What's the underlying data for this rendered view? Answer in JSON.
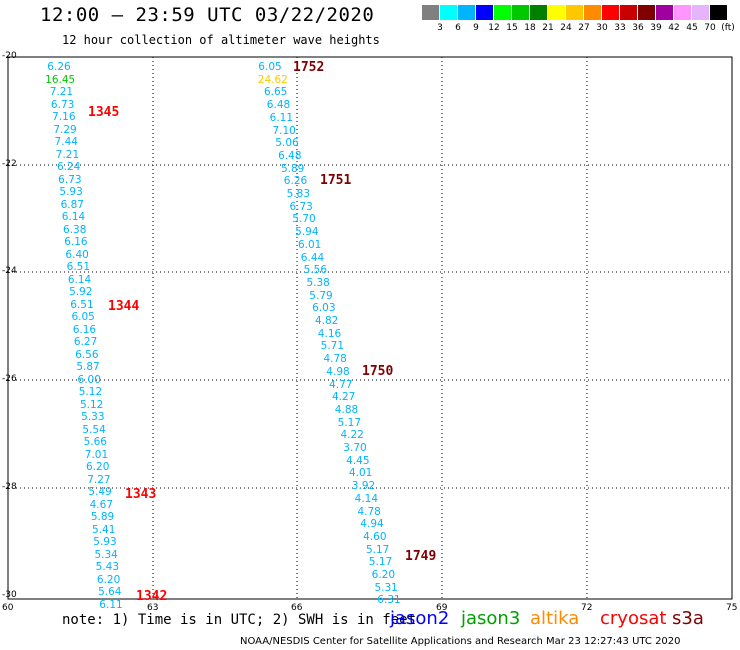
{
  "header": {
    "title": "12:00 – 23:59 UTC 03/22/2020",
    "subtitle": "12 hour collection of altimeter wave heights"
  },
  "legend": {
    "colors": [
      "#808080",
      "#00ffff",
      "#00b4ff",
      "#0000ff",
      "#00ff00",
      "#00c800",
      "#008000",
      "#ffff00",
      "#ffc800",
      "#ff8c00",
      "#ff0000",
      "#c80000",
      "#800000",
      "#a000a0",
      "#ff96ff",
      "#e6b4ff",
      "#000000"
    ],
    "labels": [
      "3",
      "6",
      "9",
      "12",
      "15",
      "18",
      "21",
      "24",
      "27",
      "30",
      "33",
      "36",
      "39",
      "42",
      "45",
      "70",
      "(ft)"
    ]
  },
  "axes": {
    "lat_labels": [
      "-20",
      "-22",
      "-24",
      "-26",
      "-28",
      "-30"
    ],
    "lon_labels": [
      "60",
      "63",
      "66",
      "69",
      "72",
      "75"
    ]
  },
  "tracks": [
    {
      "values": [
        "6.26",
        "16.45",
        "7.21",
        "6.73",
        "7.16",
        "7.29",
        "7.44",
        "7.21",
        "6.24",
        "6.73",
        "5.93",
        "6.87",
        "6.14",
        "6.38",
        "6.16",
        "6.40",
        "6.51",
        "6.14",
        "5.92",
        "6.51",
        "6.05",
        "6.16",
        "6.27",
        "6.56",
        "5.87",
        "6.00",
        "5.12",
        "5.12",
        "5.33",
        "5.54",
        "5.66",
        "7.01",
        "6.20",
        "7.27",
        "5.49",
        "4.67",
        "5.89",
        "5.41",
        "5.93",
        "5.34",
        "5.43",
        "6.20",
        "5.64",
        "6.11"
      ],
      "highlight": {
        "index": 1,
        "color": "#00c800"
      }
    },
    {
      "values": [
        "6.05",
        "24.62",
        "6.65",
        "6.48",
        "6.11",
        "7.10",
        "5.06",
        "6.48",
        "5.89",
        "6.26",
        "5.83",
        "6.73",
        "5.70",
        "5.94",
        "6.01",
        "6.44",
        "5.56",
        "5.38",
        "5.79",
        "6.03",
        "4.82",
        "4.16",
        "5.71",
        "4.78",
        "4.98",
        "4.77",
        "4.27",
        "4.88",
        "5.17",
        "4.22",
        "3.70",
        "4.45",
        "4.01",
        "3.92",
        "4.14",
        "4.78",
        "4.94",
        "4.60",
        "5.17",
        "5.17",
        "6.20",
        "5.31",
        "6.31"
      ],
      "highlight": {
        "index": 1,
        "color": "#ffc800"
      }
    }
  ],
  "times": [
    {
      "label": "1752",
      "color": "#800000"
    },
    {
      "label": "1345",
      "color": "#ff0000"
    },
    {
      "label": "1751",
      "color": "#800000"
    },
    {
      "label": "1344",
      "color": "#ff0000"
    },
    {
      "label": "1750",
      "color": "#800000"
    },
    {
      "label": "1343",
      "color": "#ff0000"
    },
    {
      "label": "1749",
      "color": "#800000"
    },
    {
      "label": "1342",
      "color": "#ff0000"
    }
  ],
  "footer": {
    "note": "note: 1) Time is in UTC; 2) SWH is in feet",
    "satellites": [
      {
        "name": "jason2",
        "color": "#0000ff"
      },
      {
        "name": "jason3",
        "color": "#00a000"
      },
      {
        "name": "altika",
        "color": "#ff8c00"
      },
      {
        "name": "cryosat",
        "color": "#ff0000"
      },
      {
        "name": "s3a",
        "color": "#800000"
      }
    ],
    "credit": "NOAA/NESDIS Center for Satellite Applications and Research    Mar 23 12:27:43 UTC 2020"
  }
}
